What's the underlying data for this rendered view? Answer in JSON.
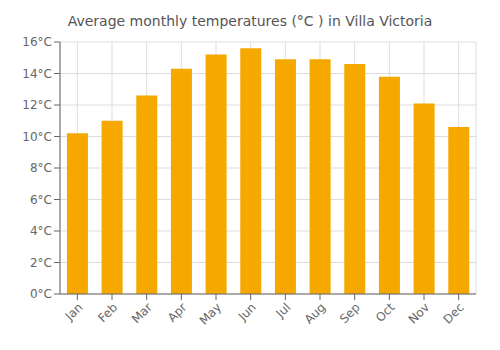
{
  "chart_data": {
    "type": "bar",
    "title": "Average monthly temperatures (°C ) in Villa Victoria",
    "categories": [
      "Jan",
      "Feb",
      "Mar",
      "Apr",
      "May",
      "Jun",
      "Jul",
      "Aug",
      "Sep",
      "Oct",
      "Nov",
      "Dec"
    ],
    "values": [
      10.2,
      11.0,
      12.6,
      14.3,
      15.2,
      15.6,
      14.9,
      14.9,
      14.6,
      13.8,
      12.1,
      10.6
    ],
    "color": "#F5A800",
    "ylim": [
      0,
      16
    ],
    "yticks": [
      {
        "value": 0,
        "label": "0°C"
      },
      {
        "value": 2,
        "label": "2°C"
      },
      {
        "value": 4,
        "label": "4°C"
      },
      {
        "value": 6,
        "label": "6°C"
      },
      {
        "value": 8,
        "label": "8°C"
      },
      {
        "value": 10,
        "label": "10°C"
      },
      {
        "value": 12,
        "label": "12°C"
      },
      {
        "value": 14,
        "label": "14°C"
      },
      {
        "value": 16,
        "label": "16°C"
      }
    ],
    "grid": true
  }
}
